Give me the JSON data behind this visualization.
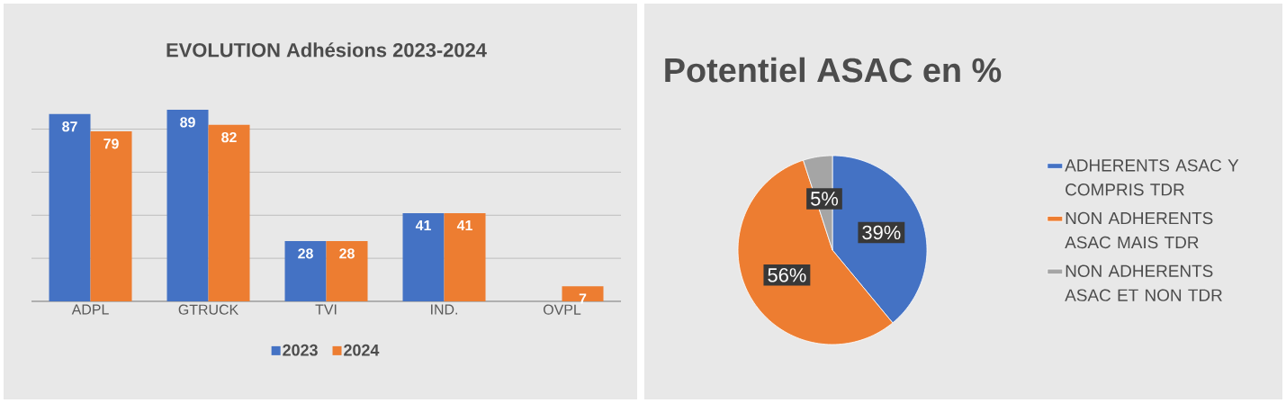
{
  "chart_data": [
    {
      "type": "bar",
      "title": "EVOLUTION Adhésions 2023-2024",
      "categories": [
        "ADPL",
        "GTRUCK",
        "TVI",
        "IND.",
        "OVPL"
      ],
      "series": [
        {
          "name": "2023",
          "color": "#4472c4",
          "values": [
            87,
            89,
            28,
            41,
            null
          ]
        },
        {
          "name": "2024",
          "color": "#ed7d31",
          "values": [
            79,
            82,
            28,
            41,
            7
          ]
        }
      ],
      "grid": "y",
      "tick_labels": "x",
      "legend": "bottom",
      "data_labels": true
    },
    {
      "type": "pie",
      "title": "Potentiel ASAC en %",
      "categories": [
        "ADHERENTS ASAC Y COMPRIS TDR",
        "NON ADHERENTS ASAC MAIS TDR",
        "NON ADHERENTS ASAC ET NON TDR"
      ],
      "values": [
        39,
        56,
        5
      ],
      "colors": [
        "#4472c4",
        "#ed7d31",
        "#a5a5a5"
      ],
      "value_labels": [
        "39%",
        "56%",
        "5%"
      ],
      "legend": "right"
    }
  ]
}
